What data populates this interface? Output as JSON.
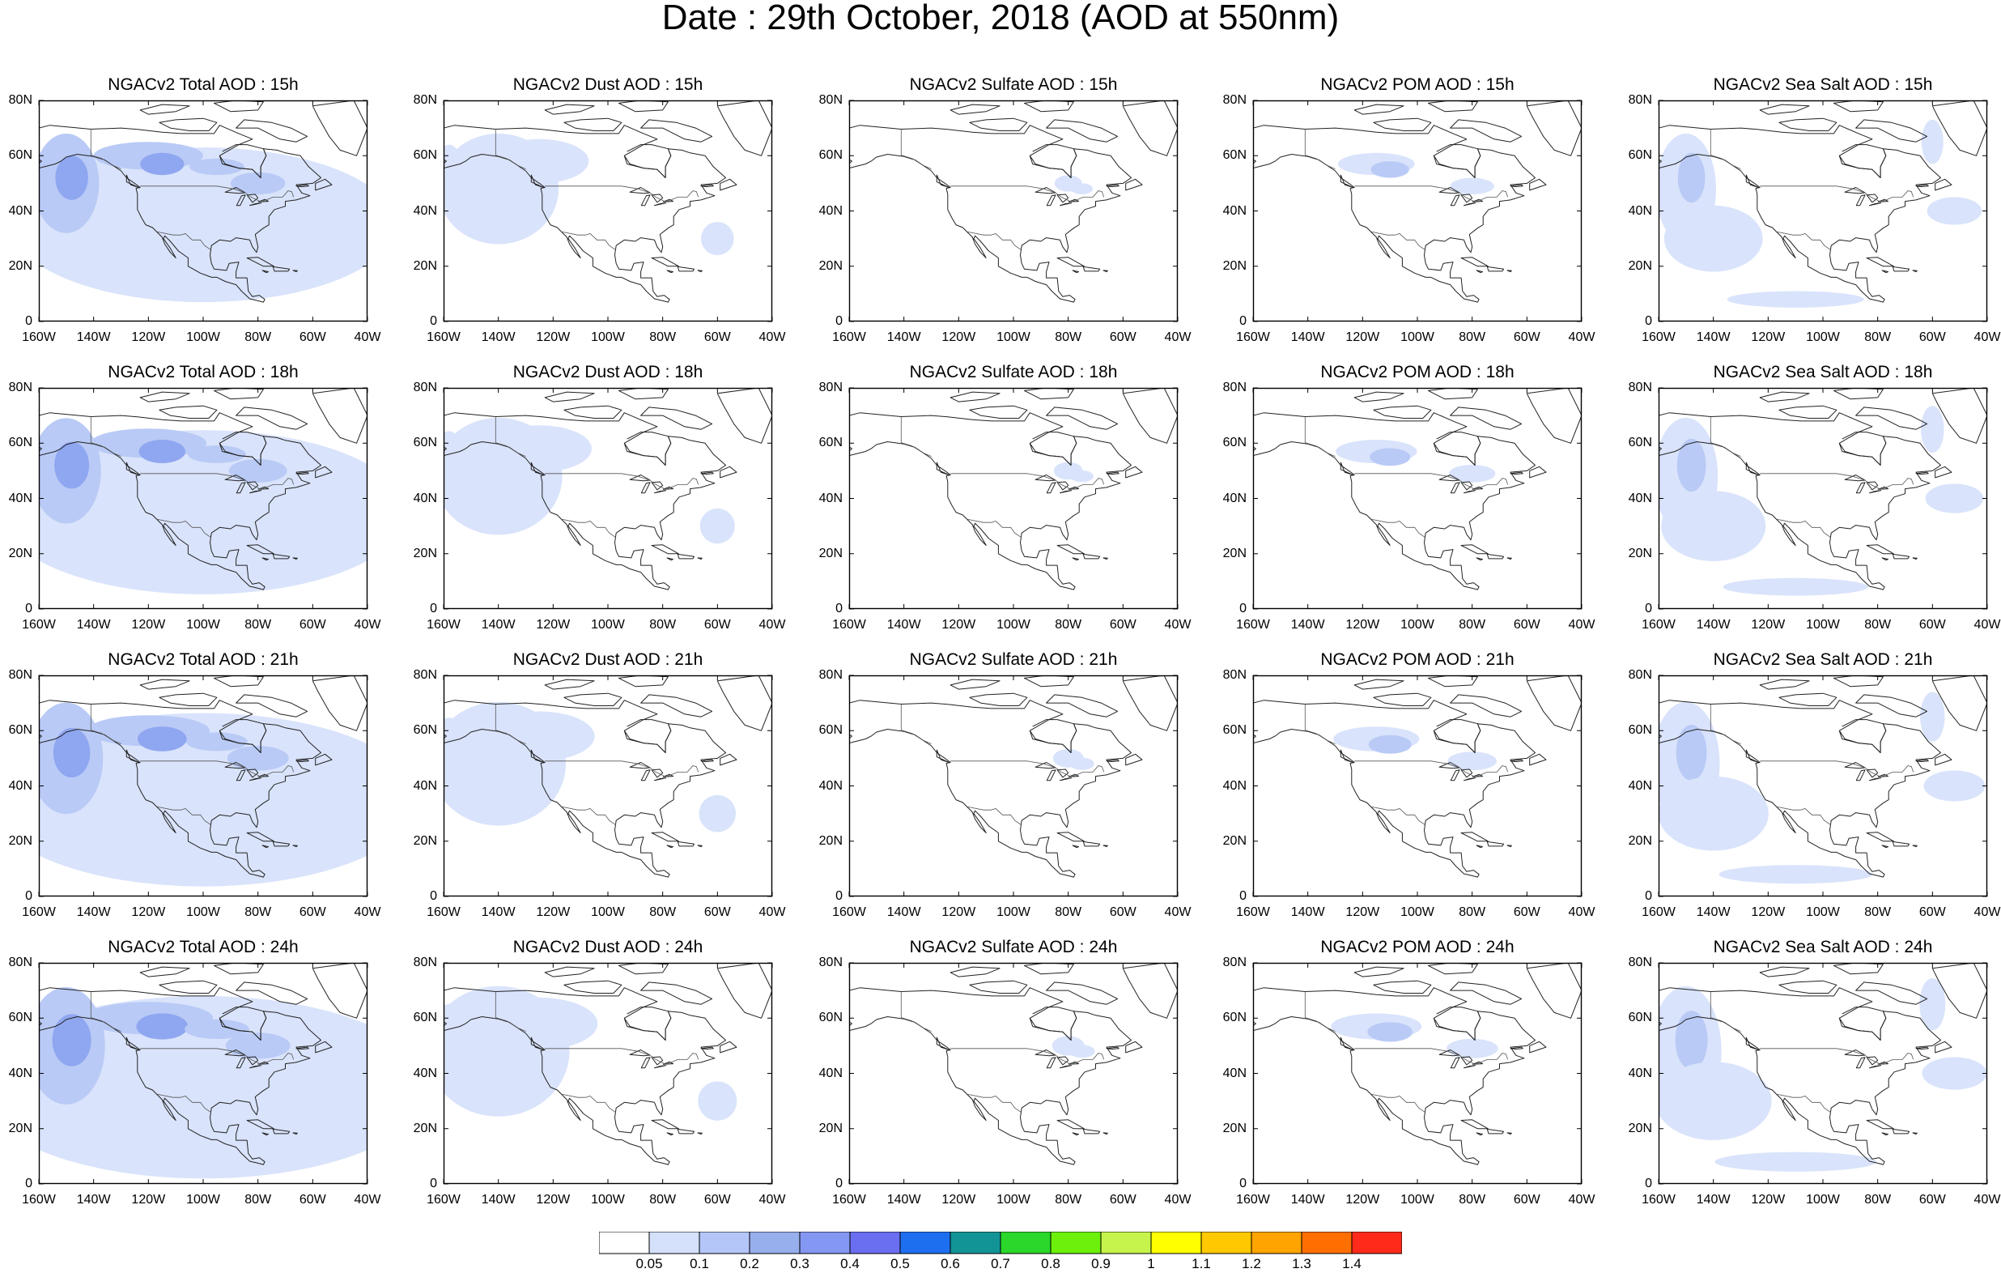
{
  "title": "Date : 29th October, 2018 (AOD at 550nm)",
  "columns": [
    "NGACv2 Total AOD",
    "NGACv2 Dust AOD",
    "NGACv2 Sulfate AOD",
    "NGACv2 POM AOD",
    "NGACv2 Sea Salt AOD"
  ],
  "panel_titles": [
    [
      "NGACv2 Total AOD : 15h",
      "NGACv2 Dust AOD : 15h",
      "NGACv2 Sulfate AOD : 15h",
      "NGACv2 POM AOD : 15h",
      "NGACv2 Sea Salt AOD : 15h"
    ],
    [
      "NGACv2 Total AOD : 18h",
      "NGACv2 Dust AOD : 18h",
      "NGACv2 Sulfate AOD : 18h",
      "NGACv2 POM AOD : 18h",
      "NGACv2 Sea Salt AOD : 18h"
    ],
    [
      "NGACv2 Total AOD : 21h",
      "NGACv2 Dust AOD : 21h",
      "NGACv2 Sulfate AOD : 21h",
      "NGACv2 POM AOD : 21h",
      "NGACv2 Sea Salt AOD : 21h"
    ],
    [
      "NGACv2 Total AOD : 24h",
      "NGACv2 Dust AOD : 24h",
      "NGACv2 Sulfate AOD : 24h",
      "NGACv2 POM AOD : 24h",
      "NGACv2 Sea Salt  AOD : 24h"
    ]
  ],
  "lat_ticks": [
    "80N",
    "60N",
    "40N",
    "20N",
    "0"
  ],
  "lon_ticks": [
    "160W",
    "140W",
    "120W",
    "100W",
    "80W",
    "60W",
    "40W"
  ],
  "colorbar": {
    "labels": [
      "0.05",
      "0.1",
      "0.2",
      "0.3",
      "0.4",
      "0.5",
      "0.6",
      "0.7",
      "0.8",
      "0.9",
      "1",
      "1.1",
      "1.2",
      "1.3",
      "1.4"
    ],
    "colors": [
      "#ffffff",
      "#d5e0fb",
      "#b4c6f8",
      "#98afee",
      "#8497f2",
      "#6a6ef0",
      "#1e6ff0",
      "#129496",
      "#2ad72a",
      "#6cf00c",
      "#c6f44c",
      "#ffff00",
      "#ffc800",
      "#ffa400",
      "#ff6e00",
      "#ff2a1a"
    ]
  },
  "map_colors": {
    "coast": "#222222",
    "low": "#d9e3fb",
    "mid": "#b9caf6",
    "high": "#8fa6f0"
  }
}
